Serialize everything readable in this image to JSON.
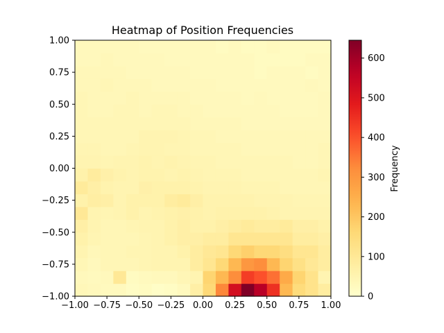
{
  "chart_data": {
    "type": "heatmap",
    "title": "Heatmap of Position Frequencies",
    "xlabel": "",
    "ylabel": "",
    "xlim": [
      -1.0,
      1.0
    ],
    "ylim": [
      -1.0,
      1.0
    ],
    "x_ticks": [
      "−1.00",
      "−0.75",
      "−0.50",
      "−0.25",
      "0.00",
      "0.25",
      "0.50",
      "0.75",
      "1.00"
    ],
    "y_ticks": [
      "−1.00",
      "−0.75",
      "−0.50",
      "−0.25",
      "0.00",
      "0.25",
      "0.50",
      "0.75",
      "1.00"
    ],
    "colormap": "YlOrRd",
    "colorbar": {
      "label": "Frequency",
      "range": [
        0,
        645
      ],
      "ticks": [
        "0",
        "100",
        "200",
        "300",
        "400",
        "500",
        "600"
      ]
    },
    "bins_x": 20,
    "bins_y": 20,
    "rows_bottom_to_top": [
      [
        35,
        30,
        25,
        25,
        15,
        20,
        10,
        15,
        25,
        70,
        160,
        330,
        520,
        645,
        570,
        450,
        230,
        150,
        120,
        80
      ],
      [
        30,
        25,
        30,
        100,
        20,
        25,
        30,
        30,
        40,
        50,
        170,
        230,
        320,
        430,
        400,
        360,
        260,
        170,
        120,
        50
      ],
      [
        40,
        30,
        40,
        40,
        40,
        45,
        50,
        50,
        50,
        80,
        110,
        160,
        230,
        300,
        320,
        230,
        170,
        130,
        100,
        80
      ],
      [
        50,
        35,
        40,
        40,
        45,
        45,
        50,
        50,
        60,
        80,
        100,
        110,
        160,
        180,
        160,
        160,
        140,
        110,
        110,
        80
      ],
      [
        60,
        45,
        40,
        40,
        40,
        45,
        50,
        60,
        70,
        70,
        80,
        80,
        110,
        110,
        110,
        110,
        110,
        80,
        80,
        70
      ],
      [
        70,
        50,
        40,
        40,
        45,
        50,
        50,
        60,
        70,
        60,
        60,
        70,
        80,
        90,
        80,
        80,
        90,
        70,
        70,
        60
      ],
      [
        100,
        50,
        45,
        50,
        60,
        50,
        55,
        60,
        65,
        60,
        55,
        60,
        60,
        60,
        60,
        55,
        50,
        50,
        50,
        50
      ],
      [
        60,
        75,
        70,
        50,
        60,
        60,
        60,
        80,
        90,
        70,
        55,
        55,
        55,
        55,
        50,
        50,
        50,
        45,
        45,
        45
      ],
      [
        90,
        70,
        55,
        50,
        50,
        65,
        60,
        60,
        60,
        55,
        50,
        50,
        50,
        45,
        45,
        45,
        40,
        40,
        40,
        40
      ],
      [
        60,
        85,
        65,
        55,
        50,
        55,
        55,
        50,
        55,
        50,
        45,
        45,
        45,
        40,
        40,
        40,
        40,
        40,
        40,
        45
      ],
      [
        50,
        50,
        45,
        50,
        50,
        55,
        50,
        55,
        50,
        45,
        45,
        40,
        40,
        40,
        40,
        40,
        40,
        35,
        35,
        40
      ],
      [
        45,
        45,
        40,
        40,
        45,
        50,
        50,
        45,
        45,
        40,
        40,
        40,
        40,
        35,
        35,
        35,
        35,
        35,
        35,
        40
      ],
      [
        40,
        40,
        40,
        40,
        40,
        50,
        50,
        50,
        45,
        40,
        40,
        35,
        35,
        35,
        35,
        35,
        35,
        35,
        35,
        35
      ],
      [
        40,
        40,
        40,
        40,
        40,
        40,
        40,
        40,
        40,
        35,
        35,
        35,
        35,
        30,
        30,
        30,
        30,
        30,
        30,
        30
      ],
      [
        40,
        35,
        35,
        40,
        40,
        35,
        40,
        40,
        35,
        35,
        30,
        30,
        30,
        30,
        30,
        30,
        25,
        25,
        25,
        30
      ],
      [
        40,
        35,
        35,
        35,
        40,
        35,
        35,
        35,
        35,
        30,
        30,
        30,
        30,
        25,
        30,
        25,
        25,
        25,
        25,
        30
      ],
      [
        35,
        35,
        40,
        35,
        35,
        35,
        30,
        30,
        30,
        30,
        30,
        25,
        25,
        25,
        25,
        25,
        25,
        25,
        30,
        25
      ],
      [
        35,
        35,
        35,
        35,
        30,
        30,
        30,
        30,
        30,
        25,
        25,
        25,
        25,
        25,
        20,
        25,
        25,
        25,
        20,
        25
      ],
      [
        30,
        30,
        35,
        30,
        30,
        30,
        30,
        25,
        25,
        25,
        25,
        25,
        25,
        25,
        20,
        20,
        20,
        20,
        25,
        25
      ],
      [
        30,
        30,
        30,
        30,
        30,
        25,
        25,
        25,
        25,
        25,
        25,
        20,
        25,
        20,
        20,
        25,
        20,
        20,
        20,
        20
      ]
    ]
  }
}
